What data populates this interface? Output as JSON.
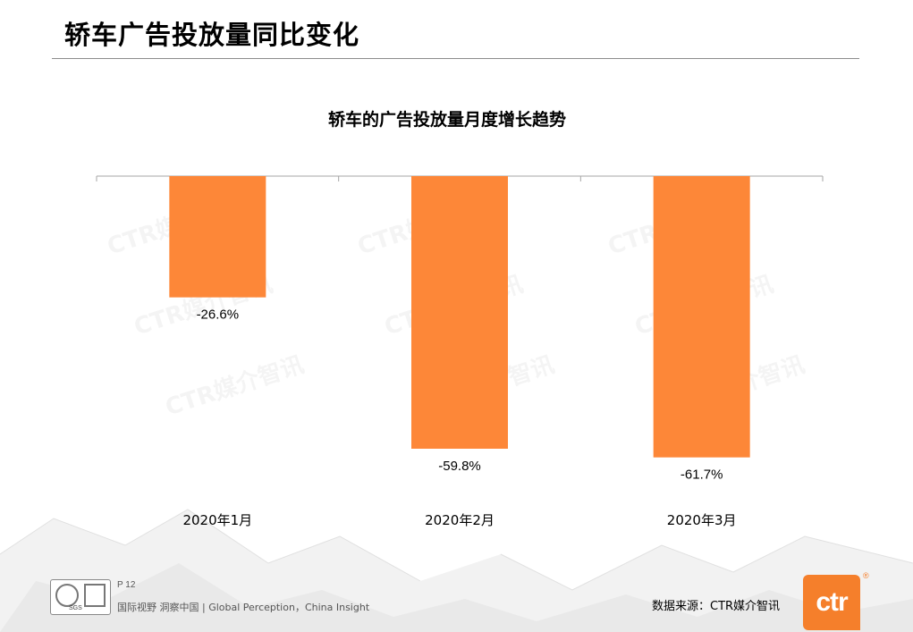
{
  "slide": {
    "title": "轿车广告投放量同比变化",
    "page": "P 12",
    "slogan": "国际视野  洞察中国 |  Global Perception，China Insight",
    "source": "数据来源：CTR媒介智讯",
    "watermark": "CTR媒介智讯",
    "logo_text": "ctr",
    "cert_text": "SGS"
  },
  "colors": {
    "bar": "#fd8738",
    "axis": "#a6a6a6",
    "brand": "#f57f2b"
  },
  "chart_data": {
    "type": "bar",
    "title": "轿车的广告投放量月度增长趋势",
    "categories": [
      "2020年1月",
      "2020年2月",
      "2020年3月"
    ],
    "values": [
      -26.6,
      -59.8,
      -61.7
    ],
    "value_labels": [
      "-26.6%",
      "-59.8%",
      "-61.7%"
    ],
    "ylim": [
      -100,
      0
    ],
    "grid": false,
    "legend": "none",
    "category_axis_position": "top"
  }
}
